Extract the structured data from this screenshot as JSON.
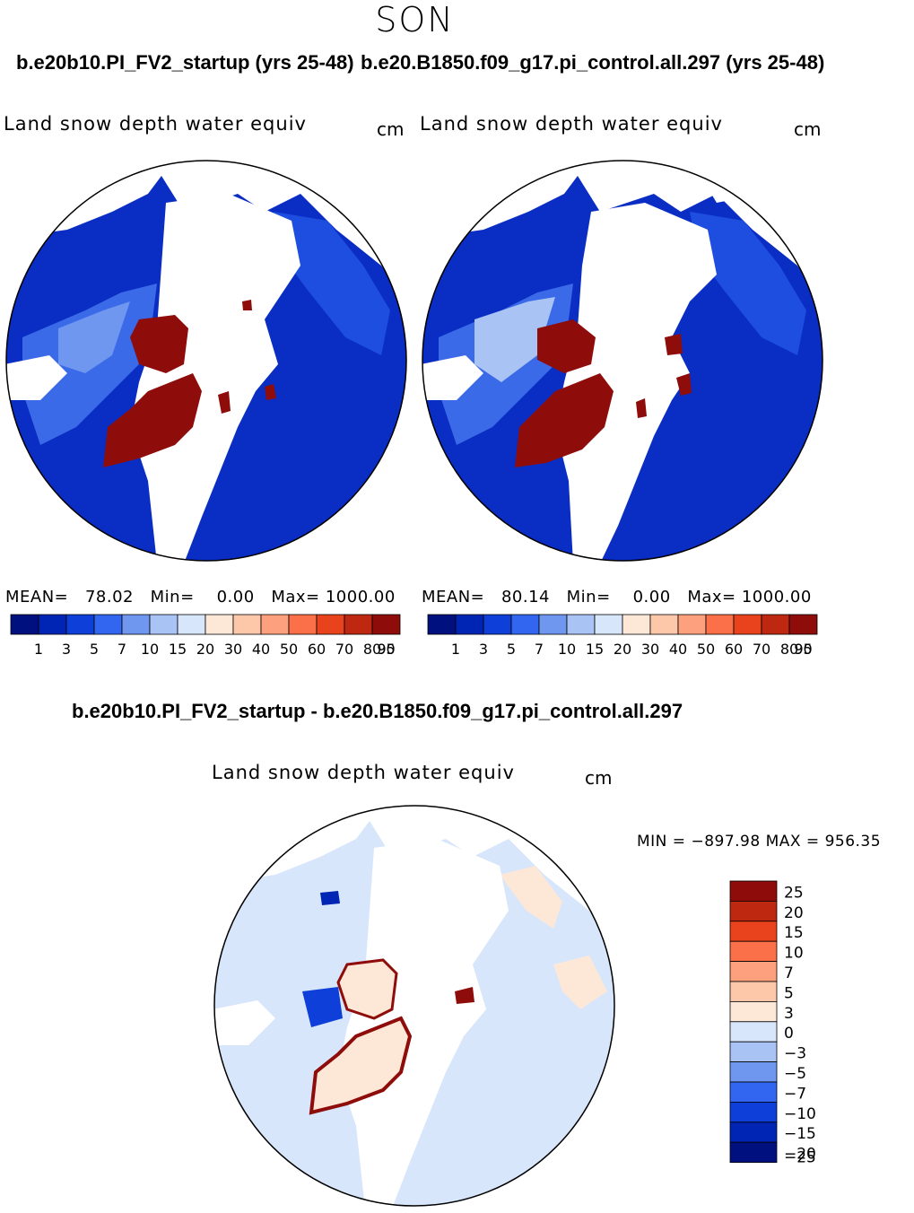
{
  "season": "SON",
  "panels": [
    {
      "case_title": "b.e20b10.PI_FV2_startup (yrs 25-48)",
      "variable": "Land snow depth water equiv",
      "units": "cm",
      "stats": {
        "mean_label": "MEAN=",
        "mean": "78.02",
        "min_label": "Min=",
        "min": "0.00",
        "max_label": "Max=",
        "max": "1000.00"
      }
    },
    {
      "case_title": "b.e20.B1850.f09_g17.pi_control.all.297 (yrs 25-48)",
      "variable": "Land snow depth water equiv",
      "units": "cm",
      "stats": {
        "mean_label": "MEAN=",
        "mean": "80.14",
        "min_label": "Min=",
        "min": "0.00",
        "max_label": "Max=",
        "max": "1000.00"
      }
    }
  ],
  "abs_colorbar": {
    "colors": [
      "#00107f",
      "#0024b3",
      "#0f3fd9",
      "#3366f0",
      "#6f97f0",
      "#a9c3f5",
      "#d8e6fb",
      "#fde8d8",
      "#fdc7a9",
      "#fca07d",
      "#fb7049",
      "#e8431c",
      "#bf2810",
      "#8e0c0a"
    ],
    "labels": [
      "1",
      "3",
      "5",
      "7",
      "10",
      "15",
      "20",
      "30",
      "40",
      "50",
      "60",
      "70",
      "80",
      "90",
      "95"
    ]
  },
  "diff": {
    "title": "b.e20b10.PI_FV2_startup - b.e20.B1850.f09_g17.pi_control.all.297",
    "variable": "Land snow depth water equiv",
    "units": "cm",
    "minmax": "MIN = −897.98 MAX = 956.35",
    "colorbar": {
      "colors": [
        "#8e0c0a",
        "#bf2810",
        "#e8431c",
        "#fb7049",
        "#fca07d",
        "#fdc7a9",
        "#fde8d8",
        "#d8e6fb",
        "#a9c3f5",
        "#6f97f0",
        "#3366f0",
        "#0f3fd9",
        "#0024b3",
        "#00107f"
      ],
      "labels": [
        "25",
        "20",
        "15",
        "10",
        "7",
        "5",
        "3",
        "0",
        "−3",
        "−5",
        "−7",
        "−10",
        "−15",
        "−20",
        "−25"
      ]
    }
  }
}
